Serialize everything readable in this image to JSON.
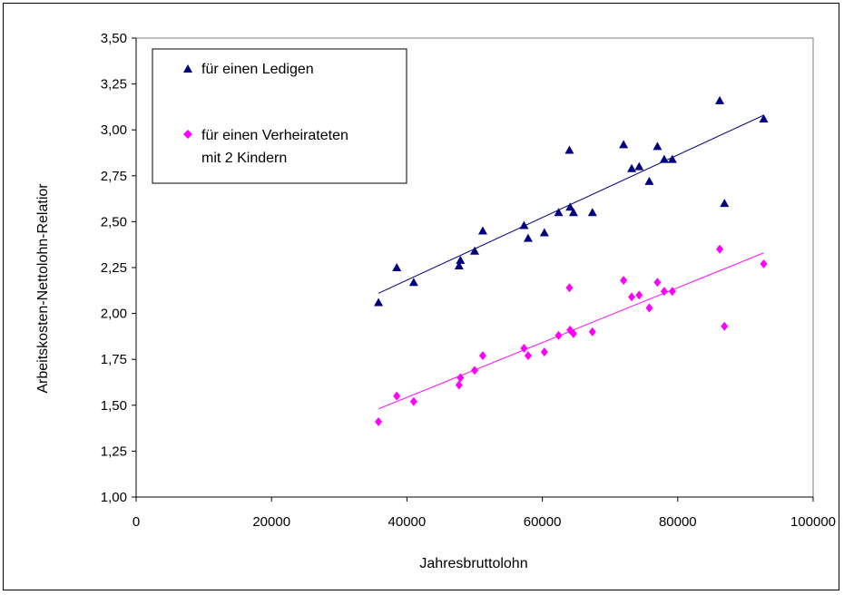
{
  "chart_data": {
    "type": "scatter",
    "xlabel": "Jahresbruttolohn",
    "ylabel": "Arbeitskosten-Nettolohn-Relatior",
    "xlim": [
      0,
      100000
    ],
    "ylim": [
      1.0,
      3.5
    ],
    "x_ticks": [
      0,
      20000,
      40000,
      60000,
      80000,
      100000
    ],
    "x_tick_labels": [
      "0",
      "20000",
      "40000",
      "60000",
      "80000",
      "100000"
    ],
    "y_ticks": [
      1.0,
      1.25,
      1.5,
      1.75,
      2.0,
      2.25,
      2.5,
      2.75,
      3.0,
      3.25,
      3.5
    ],
    "y_tick_labels": [
      "1,00",
      "1,25",
      "1,50",
      "1,75",
      "2,00",
      "2,25",
      "2,50",
      "2,75",
      "3,00",
      "3,25",
      "3,50"
    ],
    "grid": false,
    "legend_position": "top-left",
    "series": [
      {
        "name": "für einen Ledigen",
        "marker": "triangle",
        "color": "#000080",
        "points": [
          [
            35800,
            2.06
          ],
          [
            38500,
            2.25
          ],
          [
            41000,
            2.17
          ],
          [
            47700,
            2.26
          ],
          [
            47900,
            2.29
          ],
          [
            50000,
            2.34
          ],
          [
            51200,
            2.45
          ],
          [
            57300,
            2.48
          ],
          [
            57900,
            2.41
          ],
          [
            60300,
            2.44
          ],
          [
            62400,
            2.55
          ],
          [
            64000,
            2.89
          ],
          [
            64100,
            2.58
          ],
          [
            64600,
            2.55
          ],
          [
            67400,
            2.55
          ],
          [
            72000,
            2.92
          ],
          [
            73200,
            2.79
          ],
          [
            74300,
            2.8
          ],
          [
            75800,
            2.72
          ],
          [
            77000,
            2.91
          ],
          [
            78000,
            2.84
          ],
          [
            79200,
            2.84
          ],
          [
            86200,
            3.16
          ],
          [
            86900,
            2.6
          ],
          [
            92700,
            3.06
          ]
        ],
        "trendline": {
          "x": [
            35800,
            92700
          ],
          "y": [
            2.11,
            3.08
          ]
        }
      },
      {
        "name_lines": [
          "für einen Verheirateten",
          "mit 2 Kindern"
        ],
        "marker": "diamond",
        "color": "#ff00ff",
        "points": [
          [
            35800,
            1.41
          ],
          [
            38500,
            1.55
          ],
          [
            41000,
            1.52
          ],
          [
            47700,
            1.61
          ],
          [
            47900,
            1.65
          ],
          [
            50000,
            1.69
          ],
          [
            51200,
            1.77
          ],
          [
            57300,
            1.81
          ],
          [
            57900,
            1.77
          ],
          [
            60300,
            1.79
          ],
          [
            62400,
            1.88
          ],
          [
            64000,
            2.14
          ],
          [
            64100,
            1.91
          ],
          [
            64600,
            1.89
          ],
          [
            67400,
            1.9
          ],
          [
            72000,
            2.18
          ],
          [
            73200,
            2.09
          ],
          [
            74300,
            2.1
          ],
          [
            75800,
            2.03
          ],
          [
            77000,
            2.17
          ],
          [
            78000,
            2.12
          ],
          [
            79200,
            2.12
          ],
          [
            86200,
            2.35
          ],
          [
            86900,
            1.93
          ],
          [
            92700,
            2.27
          ]
        ],
        "trendline": {
          "x": [
            35800,
            92700
          ],
          "y": [
            1.48,
            2.33
          ]
        }
      }
    ]
  }
}
